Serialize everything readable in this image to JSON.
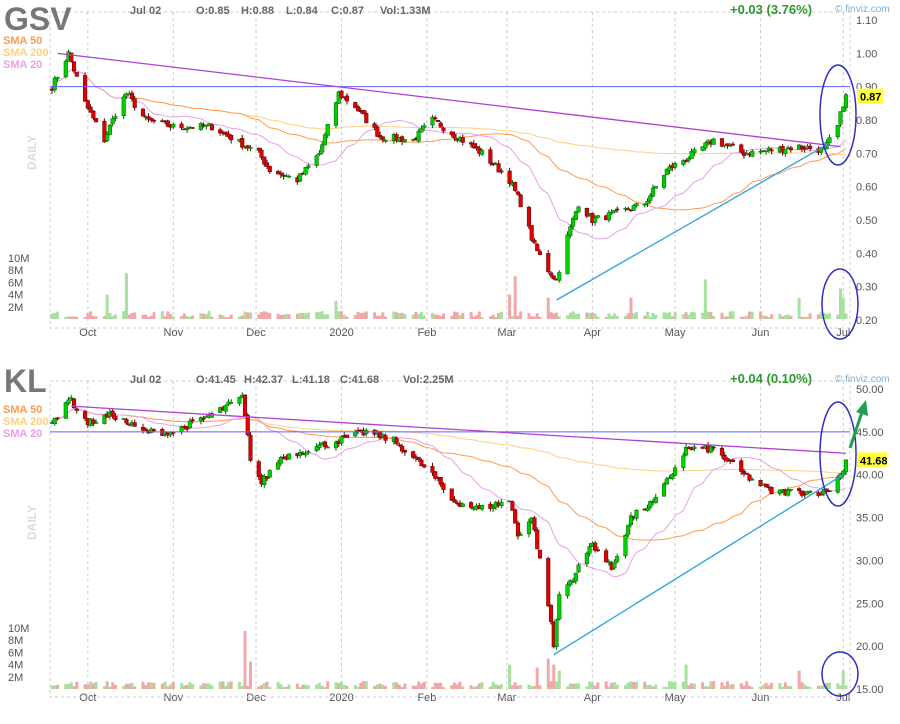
{
  "chart_data": [
    {
      "type": "candlestick",
      "ticker": "GSV",
      "date": "Jul 02",
      "open": "O:0.85",
      "high": "H:0.88",
      "low": "L:0.84",
      "close": "C:0.87",
      "volume": "Vol:1.33M",
      "change": "+0.03 (3.76%)",
      "last_price": "0.87",
      "watermark": "© finviz.com",
      "period_label": "DAILY",
      "legend": [
        "SMA 50",
        "SMA 200",
        "SMA 20"
      ],
      "legend_colors": [
        "#ff9a50",
        "#ffd080",
        "#e8a0e8"
      ],
      "ylim": [
        0.2,
        1.1
      ],
      "yticks": [
        "1.10",
        "1.00",
        "0.90",
        "0.80",
        "0.70",
        "0.60",
        "0.50",
        "0.40",
        "0.30",
        "0.20"
      ],
      "vol_ticks": [
        "10M",
        "8M",
        "6M",
        "4M",
        "2M"
      ],
      "xticks": [
        [
          "Oct",
          "2019-10-01"
        ],
        [
          "Nov",
          "2019-11-01"
        ],
        [
          "Dec",
          "2019-12-01"
        ],
        [
          "2020",
          "2020-01-01"
        ],
        [
          "Feb",
          "2020-02-01"
        ],
        [
          "Mar",
          "2020-03-01"
        ],
        [
          "Apr",
          "2020-04-01"
        ],
        [
          "May",
          "2020-05-01"
        ],
        [
          "Jun",
          "2020-06-01"
        ],
        [
          "Jul",
          "2020-07-01"
        ]
      ],
      "closes": [
        [
          "2019-09-18",
          0.9
        ],
        [
          "2019-09-24",
          1.0
        ],
        [
          "2019-09-30",
          0.85
        ],
        [
          "2019-10-07",
          0.74
        ],
        [
          "2019-10-11",
          0.82
        ],
        [
          "2019-10-15",
          0.88
        ],
        [
          "2019-10-22",
          0.8
        ],
        [
          "2019-11-01",
          0.78
        ],
        [
          "2019-11-15",
          0.78
        ],
        [
          "2019-12-02",
          0.7
        ],
        [
          "2019-12-06",
          0.65
        ],
        [
          "2019-12-16",
          0.62
        ],
        [
          "2019-12-24",
          0.7
        ],
        [
          "2019-12-31",
          0.88
        ],
        [
          "2020-01-06",
          0.84
        ],
        [
          "2020-01-15",
          0.75
        ],
        [
          "2020-01-27",
          0.74
        ],
        [
          "2020-02-03",
          0.8
        ],
        [
          "2020-02-12",
          0.75
        ],
        [
          "2020-02-21",
          0.7
        ],
        [
          "2020-03-02",
          0.62
        ],
        [
          "2020-03-06",
          0.55
        ],
        [
          "2020-03-11",
          0.42
        ],
        [
          "2020-03-16",
          0.35
        ],
        [
          "2020-03-19",
          0.32
        ],
        [
          "2020-03-23",
          0.45
        ],
        [
          "2020-03-27",
          0.55
        ],
        [
          "2020-04-01",
          0.5
        ],
        [
          "2020-04-10",
          0.52
        ],
        [
          "2020-04-20",
          0.55
        ],
        [
          "2020-04-28",
          0.65
        ],
        [
          "2020-05-08",
          0.7
        ],
        [
          "2020-05-15",
          0.74
        ],
        [
          "2020-05-26",
          0.7
        ],
        [
          "2020-06-05",
          0.71
        ],
        [
          "2020-06-15",
          0.72
        ],
        [
          "2020-06-24",
          0.71
        ],
        [
          "2020-06-29",
          0.78
        ],
        [
          "2020-07-01",
          0.85
        ],
        [
          "2020-07-02",
          0.87
        ]
      ],
      "volume_spikes_m": [
        [
          "2019-10-15",
          7.5
        ],
        [
          "2019-10-08",
          4
        ],
        [
          "2019-12-30",
          3
        ],
        [
          "2020-03-02",
          4
        ],
        [
          "2020-03-04",
          7
        ],
        [
          "2020-03-16",
          3.5
        ],
        [
          "2020-04-15",
          3.5
        ],
        [
          "2020-05-12",
          6.5
        ],
        [
          "2020-06-15",
          3.5
        ],
        [
          "2020-06-30",
          5
        ],
        [
          "2020-07-01",
          3.5
        ]
      ],
      "trendlines": [
        {
          "color": "#b040d0",
          "from": [
            "2019-09-20",
            1.0
          ],
          "to": [
            "2020-06-30",
            0.72
          ]
        },
        {
          "color": "#2aa0e0",
          "from": [
            "2020-03-19",
            0.26
          ],
          "to": [
            "2020-06-26",
            0.73
          ]
        }
      ],
      "hline": {
        "color": "#6060ff",
        "value": 0.9
      }
    },
    {
      "type": "candlestick",
      "ticker": "KL",
      "date": "Jul 02",
      "open": "O:41.45",
      "high": "H:42.37",
      "low": "L:41.18",
      "close": "C:41.68",
      "volume": "Vol:2.25M",
      "change": "+0.04 (0.10%)",
      "last_price": "41.68",
      "watermark": "© finviz.com",
      "period_label": "DAILY",
      "legend": [
        "SMA 50",
        "SMA 200",
        "SMA 20"
      ],
      "legend_colors": [
        "#ff9a50",
        "#ffd080",
        "#e8a0e8"
      ],
      "ylim": [
        15,
        50
      ],
      "yticks": [
        "50.00",
        "45.00",
        "40.00",
        "35.00",
        "30.00",
        "25.00",
        "20.00",
        "15.00"
      ],
      "vol_ticks": [
        "10M",
        "8M",
        "6M",
        "4M",
        "2M"
      ],
      "xticks": [
        [
          "Oct",
          "2019-10-01"
        ],
        [
          "Nov",
          "2019-11-01"
        ],
        [
          "Dec",
          "2019-12-01"
        ],
        [
          "2020",
          "2020-01-01"
        ],
        [
          "Feb",
          "2020-02-01"
        ],
        [
          "Mar",
          "2020-03-01"
        ],
        [
          "Apr",
          "2020-04-01"
        ],
        [
          "May",
          "2020-05-01"
        ],
        [
          "Jun",
          "2020-06-01"
        ],
        [
          "Jul",
          "2020-07-01"
        ]
      ],
      "closes": [
        [
          "2019-09-18",
          46
        ],
        [
          "2019-09-24",
          49
        ],
        [
          "2019-10-01",
          46
        ],
        [
          "2019-10-10",
          47
        ],
        [
          "2019-10-21",
          45
        ],
        [
          "2019-11-01",
          45
        ],
        [
          "2019-11-15",
          47
        ],
        [
          "2019-11-26",
          49
        ],
        [
          "2019-11-29",
          42
        ],
        [
          "2019-12-03",
          39
        ],
        [
          "2019-12-10",
          42
        ],
        [
          "2019-12-31",
          44
        ],
        [
          "2020-01-10",
          45
        ],
        [
          "2020-01-20",
          44
        ],
        [
          "2020-02-03",
          40
        ],
        [
          "2020-02-10",
          37
        ],
        [
          "2020-02-20",
          36
        ],
        [
          "2020-03-02",
          37
        ],
        [
          "2020-03-05",
          33
        ],
        [
          "2020-03-10",
          35
        ],
        [
          "2020-03-16",
          25
        ],
        [
          "2020-03-18",
          20
        ],
        [
          "2020-03-20",
          26
        ],
        [
          "2020-03-25",
          28
        ],
        [
          "2020-04-01",
          32
        ],
        [
          "2020-04-08",
          29
        ],
        [
          "2020-04-15",
          35
        ],
        [
          "2020-04-24",
          37
        ],
        [
          "2020-05-05",
          43
        ],
        [
          "2020-05-15",
          43
        ],
        [
          "2020-05-26",
          40
        ],
        [
          "2020-06-05",
          38
        ],
        [
          "2020-06-15",
          38
        ],
        [
          "2020-06-25",
          38
        ],
        [
          "2020-06-30",
          40
        ],
        [
          "2020-07-02",
          41.68
        ]
      ],
      "volume_spikes_m": [
        [
          "2019-11-27",
          9.5
        ],
        [
          "2019-11-29",
          4.5
        ],
        [
          "2020-03-02",
          4
        ],
        [
          "2020-03-16",
          5
        ],
        [
          "2020-03-18",
          4
        ],
        [
          "2020-03-12",
          3.5
        ],
        [
          "2020-03-20",
          3
        ],
        [
          "2020-05-05",
          4
        ],
        [
          "2020-06-15",
          3
        ],
        [
          "2020-07-01",
          3
        ]
      ],
      "trendlines": [
        {
          "color": "#b040d0",
          "from": [
            "2019-09-25",
            48
          ],
          "to": [
            "2020-07-02",
            42.5
          ]
        },
        {
          "color": "#2aa0e0",
          "from": [
            "2020-03-18",
            19
          ],
          "to": [
            "2020-07-01",
            40
          ]
        }
      ],
      "hline": {
        "color": "#6060ff",
        "value": 45
      },
      "arrow_color": "#20a050"
    }
  ]
}
